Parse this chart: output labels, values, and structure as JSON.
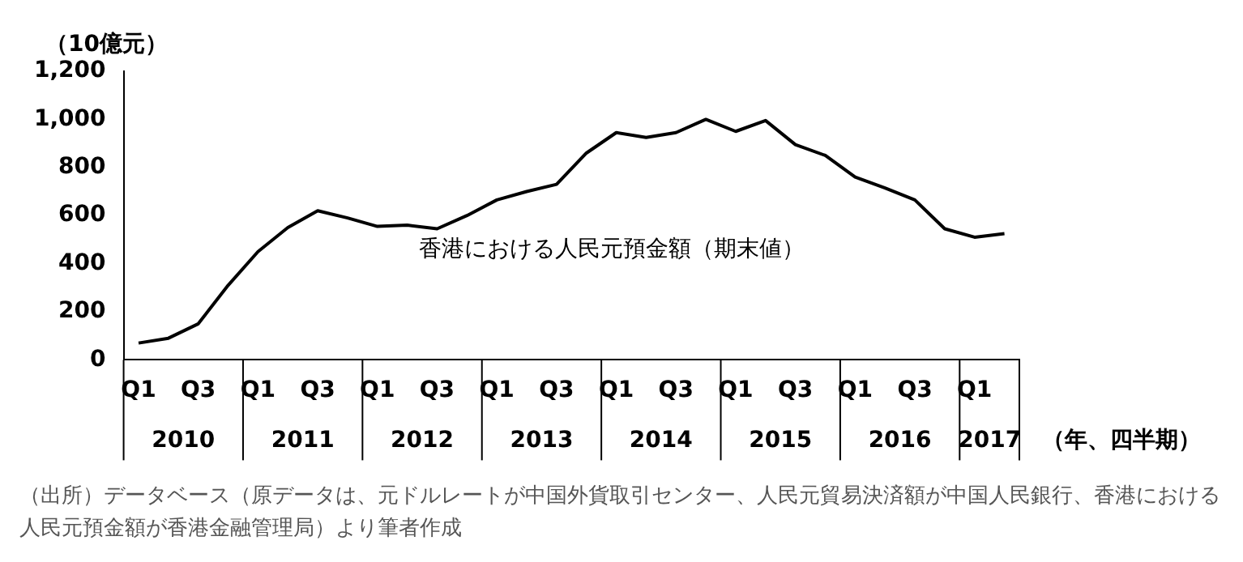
{
  "chart_data": {
    "type": "line",
    "ylabel": "（10億元）",
    "xlabel": "（年、四半期）",
    "categories": [
      "Q1",
      null,
      "Q3",
      null,
      "Q1",
      null,
      "Q3",
      null,
      "Q1",
      null,
      "Q3",
      null,
      "Q1",
      null,
      "Q3",
      null,
      "Q1",
      null,
      "Q3",
      null,
      "Q1",
      null,
      "Q3",
      null,
      "Q1",
      null,
      "Q3",
      null,
      "Q1",
      null
    ],
    "series": [
      {
        "name": "香港における人民元預金額（期末値）",
        "color": "#000000",
        "values": [
          70,
          90,
          150,
          310,
          450,
          550,
          620,
          590,
          555,
          560,
          545,
          600,
          665,
          700,
          730,
          860,
          945,
          925,
          945,
          1000,
          950,
          995,
          895,
          850,
          760,
          715,
          665,
          545,
          510,
          525
        ]
      }
    ],
    "ylim": [
      0,
      1200
    ],
    "yticks": [
      0,
      200,
      400,
      600,
      800,
      {
        "value": 1000,
        "label": "1,000"
      },
      {
        "value": 1200,
        "label": "1,200"
      }
    ],
    "grid": false,
    "legend": false,
    "marker": "none",
    "line_style": "solid",
    "annotations": [
      "2010",
      "2011",
      "2012",
      "2013",
      "2014",
      "2015",
      "2016",
      "2017",
      "（出所）データベース（原データは、元ドルレートが中国外貨取引センター、人民元貿易決済額が中国人民銀行、香港における人民元預金額が香港金融管理局）より筆者作成"
    ]
  }
}
